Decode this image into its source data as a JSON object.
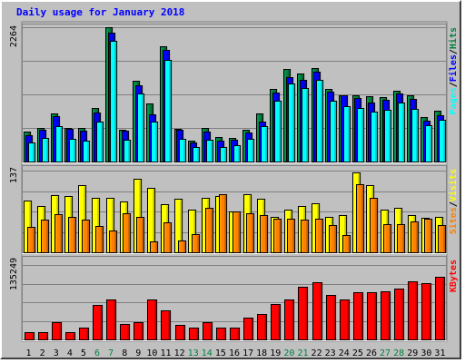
{
  "chart_data": {
    "type": "bar",
    "title": "Daily usage for January 2018",
    "categories": [
      "1",
      "2",
      "3",
      "4",
      "5",
      "6",
      "7",
      "8",
      "9",
      "10",
      "11",
      "12",
      "13",
      "14",
      "15",
      "16",
      "17",
      "18",
      "19",
      "20",
      "21",
      "22",
      "23",
      "24",
      "25",
      "26",
      "27",
      "28",
      "29",
      "30",
      "31"
    ],
    "weekend_days": [
      6,
      7,
      13,
      14,
      20,
      21,
      27,
      28
    ],
    "panels": [
      {
        "ymax_label": "2264",
        "ymax": 2264,
        "legend": [
          "Pages",
          "/",
          "Files",
          "/",
          "Hits"
        ],
        "legend_colors": [
          "#00ffff",
          "#000000",
          "#0000ff",
          "#000000",
          "#008040"
        ],
        "series": [
          {
            "name": "Hits",
            "color": "#008040",
            "values": [
              500,
              560,
              810,
              560,
              560,
              900,
              2264,
              540,
              1360,
              980,
              1950,
              550,
              350,
              570,
              410,
              400,
              540,
              810,
              1230,
              1560,
              1480,
              1580,
              1230,
              1120,
              1120,
              1100,
              1090,
              1200,
              1120,
              750,
              850
            ]
          },
          {
            "name": "Files",
            "color": "#0000ff",
            "values": [
              450,
              540,
              760,
              550,
              520,
              820,
              2170,
              520,
              1290,
              800,
              1880,
              530,
              320,
              500,
              350,
              370,
              490,
              680,
              1170,
              1420,
              1370,
              1510,
              1180,
              1110,
              1070,
              990,
              1040,
              1140,
              1060,
              690,
              780
            ]
          },
          {
            "name": "Pages",
            "color": "#00ffff",
            "values": [
              320,
              400,
              600,
              380,
              350,
              680,
              2040,
              370,
              1150,
              680,
              1720,
              380,
              250,
              370,
              240,
              270,
              380,
              590,
              1020,
              1320,
              1240,
              1380,
              1030,
              930,
              910,
              840,
              870,
              1000,
              880,
              610,
              700
            ]
          }
        ]
      },
      {
        "ymax_label": "137",
        "ymax": 137,
        "legend": [
          "Sites",
          "/",
          "Visits"
        ],
        "legend_colors": [
          "#ff8000",
          "#000000",
          "#ffff00"
        ],
        "series": [
          {
            "name": "Visits",
            "color": "#ffff00",
            "values": [
              87,
              78,
              96,
              95,
              113,
              92,
              91,
              86,
              124,
              108,
              81,
              90,
              72,
              92,
              95,
              68,
              98,
              90,
              60,
              72,
              77,
              82,
              59,
              62,
              134,
              113,
              71,
              74,
              62,
              58,
              60
            ]
          },
          {
            "name": "Sites",
            "color": "#ff8000",
            "values": [
              43,
              55,
              64,
              60,
              55,
              44,
              37,
              65,
              60,
              19,
              50,
              20,
              30,
              74,
              97,
              68,
              65,
              63,
              57,
              56,
              55,
              56,
              45,
              29,
              114,
              92,
              47,
              47,
              52,
              57,
              45
            ]
          }
        ]
      },
      {
        "ymax_label": "135249",
        "ymax": 135249,
        "legend": [
          "KBytes"
        ],
        "legend_colors": [
          "#ff0000"
        ],
        "series": [
          {
            "name": "KBytes",
            "color": "#ff0000",
            "values": [
              13000,
              13000,
              32000,
              13000,
              21000,
              63000,
              72000,
              28000,
              32000,
              72000,
              53000,
              26000,
              21000,
              32000,
              21000,
              22000,
              40000,
              46000,
              64000,
              72000,
              95000,
              104000,
              81000,
              73000,
              86000,
              86000,
              88000,
              92000,
              106000,
              102000,
              114000
            ]
          }
        ]
      }
    ]
  }
}
